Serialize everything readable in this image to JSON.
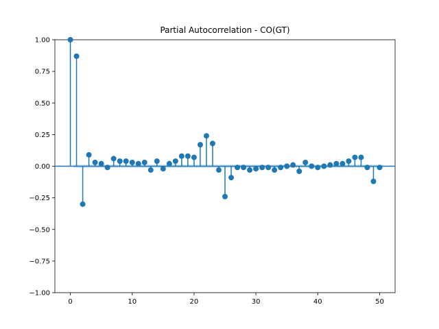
{
  "chart_data": {
    "type": "stem",
    "title": "Partial Autocorrelation - CO(GT)",
    "xlabel": "",
    "ylabel": "",
    "xlim": [
      -2.5,
      52.5
    ],
    "ylim": [
      -1.0,
      1.0
    ],
    "x_ticks": [
      0,
      10,
      20,
      30,
      40,
      50
    ],
    "y_ticks": [
      -1.0,
      -0.75,
      -0.5,
      -0.25,
      0.0,
      0.25,
      0.5,
      0.75,
      1.0
    ],
    "x_tick_labels": [
      "0",
      "10",
      "20",
      "30",
      "40",
      "50"
    ],
    "y_tick_labels": [
      "−1.00",
      "−0.75",
      "−0.50",
      "−0.25",
      "0.00",
      "0.25",
      "0.50",
      "0.75",
      "1.00"
    ],
    "grid": false,
    "color": "#1f77b4",
    "confidence_band": 0.012,
    "lags": [
      0,
      1,
      2,
      3,
      4,
      5,
      6,
      7,
      8,
      9,
      10,
      11,
      12,
      13,
      14,
      15,
      16,
      17,
      18,
      19,
      20,
      21,
      22,
      23,
      24,
      25,
      26,
      27,
      28,
      29,
      30,
      31,
      32,
      33,
      34,
      35,
      36,
      37,
      38,
      39,
      40,
      41,
      42,
      43,
      44,
      45,
      46,
      47,
      48,
      49,
      50
    ],
    "values": [
      1.0,
      0.87,
      -0.3,
      0.09,
      0.03,
      0.02,
      -0.01,
      0.06,
      0.04,
      0.04,
      0.03,
      0.02,
      0.03,
      -0.03,
      0.04,
      -0.02,
      0.02,
      0.04,
      0.08,
      0.08,
      0.07,
      0.17,
      0.24,
      0.18,
      -0.03,
      -0.24,
      -0.09,
      -0.01,
      -0.01,
      -0.03,
      -0.02,
      -0.01,
      -0.01,
      -0.03,
      -0.01,
      0.0,
      0.01,
      -0.04,
      0.03,
      0.0,
      -0.01,
      0.0,
      0.01,
      0.02,
      0.02,
      0.04,
      0.07,
      0.07,
      -0.01,
      -0.12,
      -0.01
    ]
  }
}
